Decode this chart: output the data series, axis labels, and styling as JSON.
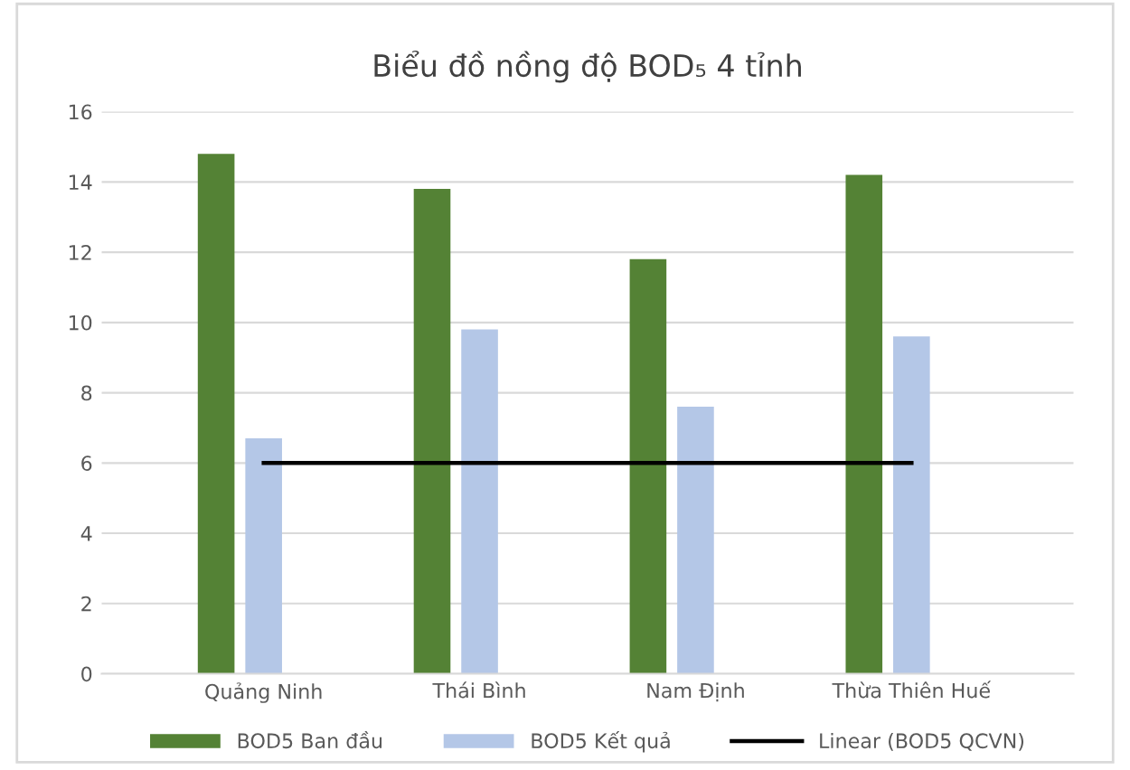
{
  "chart_data": {
    "type": "bar",
    "title": "Biểu đồ nồng độ BOD₅ 4 tỉnh",
    "categories": [
      "Quảng Ninh",
      "Thái Bình",
      "Nam Định",
      "Thừa Thiên Huế"
    ],
    "series": [
      {
        "name": "BOD5 Ban đầu",
        "color": "#548235",
        "values": [
          14.8,
          13.8,
          11.8,
          14.2
        ]
      },
      {
        "name": "BOD5 Kết quả",
        "color": "#b4c7e7",
        "values": [
          6.7,
          9.8,
          7.6,
          9.6
        ]
      },
      {
        "name": "Linear (BOD5 QCVN)",
        "type": "line",
        "color": "#000000",
        "values": [
          6,
          6,
          6,
          6
        ]
      }
    ],
    "ylim": [
      0,
      16
    ],
    "yticks": [
      0,
      2,
      4,
      6,
      8,
      10,
      12,
      14,
      16
    ],
    "grid": "y",
    "legend": "bottom"
  }
}
